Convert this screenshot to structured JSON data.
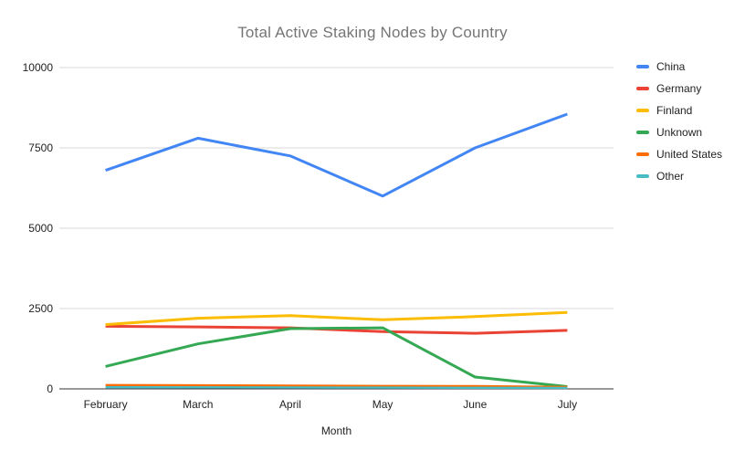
{
  "title": "Total Active Staking Nodes by Country",
  "axis": {
    "x_title": "Month",
    "y_tick_labels": [
      "0",
      "2500",
      "5000",
      "7500",
      "10000"
    ]
  },
  "legend": {
    "position": "right",
    "items": [
      "China",
      "Germany",
      "Finland",
      "Unknown",
      "United States",
      "Other"
    ]
  },
  "colors": {
    "china": "#4285F4",
    "germany": "#EA4335",
    "finland": "#FBBC04",
    "unknown": "#34A853",
    "united_states": "#FF6D01",
    "other": "#46BDC6",
    "title_text": "#757575",
    "axis_text": "#222222",
    "gridline": "#d9d9d9",
    "baseline": "#333333",
    "background": "#ffffff"
  },
  "chart_data": {
    "type": "line",
    "title": "Total Active Staking Nodes by Country",
    "xlabel": "Month",
    "ylabel": "",
    "categories": [
      "February",
      "March",
      "April",
      "May",
      "June",
      "July"
    ],
    "series": [
      {
        "name": "China",
        "color": "#4285F4",
        "values": [
          6800,
          7800,
          7250,
          6000,
          7500,
          8550
        ]
      },
      {
        "name": "Germany",
        "color": "#EA4335",
        "values": [
          1950,
          1930,
          1900,
          1780,
          1730,
          1820
        ]
      },
      {
        "name": "Finland",
        "color": "#FBBC04",
        "values": [
          2000,
          2200,
          2280,
          2150,
          2250,
          2380
        ]
      },
      {
        "name": "Unknown",
        "color": "#34A853",
        "values": [
          700,
          1400,
          1875,
          1900,
          370,
          70
        ]
      },
      {
        "name": "United States",
        "color": "#FF6D01",
        "values": [
          120,
          110,
          100,
          90,
          85,
          60
        ]
      },
      {
        "name": "Other",
        "color": "#46BDC6",
        "values": [
          50,
          48,
          45,
          40,
          35,
          30
        ]
      }
    ],
    "y_ticks": [
      0,
      2500,
      5000,
      7500,
      10000
    ],
    "ylim": [
      0,
      10000
    ],
    "grid": true,
    "legend_position": "right"
  }
}
